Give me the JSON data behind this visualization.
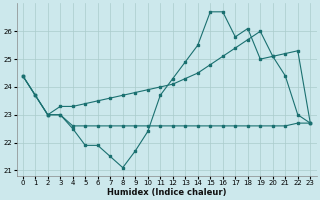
{
  "xlabel": "Humidex (Indice chaleur)",
  "bg_color": "#cce8ec",
  "grid_color": "#aacccc",
  "line_color": "#1a7070",
  "x_values": [
    0,
    1,
    2,
    3,
    4,
    5,
    6,
    7,
    8,
    9,
    10,
    11,
    12,
    13,
    14,
    15,
    16,
    17,
    18,
    19,
    20,
    21,
    22,
    23
  ],
  "line_zigzag": [
    24.4,
    23.7,
    23.0,
    23.0,
    22.5,
    21.9,
    21.9,
    21.5,
    21.1,
    21.7,
    22.4,
    23.7,
    24.3,
    24.9,
    25.5,
    26.7,
    26.7,
    25.8,
    26.1,
    25.0,
    25.1,
    24.4,
    23.0,
    22.7
  ],
  "line_flat": [
    24.4,
    23.7,
    23.0,
    23.0,
    22.6,
    22.6,
    22.6,
    22.6,
    22.6,
    22.6,
    22.6,
    22.6,
    22.6,
    22.6,
    22.6,
    22.6,
    22.6,
    22.6,
    22.6,
    22.6,
    22.6,
    22.6,
    22.7,
    22.7
  ],
  "line_rising": [
    24.4,
    23.7,
    23.0,
    23.3,
    23.3,
    23.4,
    23.5,
    23.6,
    23.7,
    23.8,
    23.9,
    24.0,
    24.1,
    24.3,
    24.5,
    24.8,
    25.1,
    25.4,
    25.7,
    26.0,
    25.1,
    25.2,
    25.3,
    22.7
  ],
  "ylim": [
    20.8,
    27.0
  ],
  "yticks": [
    21,
    22,
    23,
    24,
    25,
    26
  ],
  "xticks": [
    0,
    1,
    2,
    3,
    4,
    5,
    6,
    7,
    8,
    9,
    10,
    11,
    12,
    13,
    14,
    15,
    16,
    17,
    18,
    19,
    20,
    21,
    22,
    23
  ]
}
